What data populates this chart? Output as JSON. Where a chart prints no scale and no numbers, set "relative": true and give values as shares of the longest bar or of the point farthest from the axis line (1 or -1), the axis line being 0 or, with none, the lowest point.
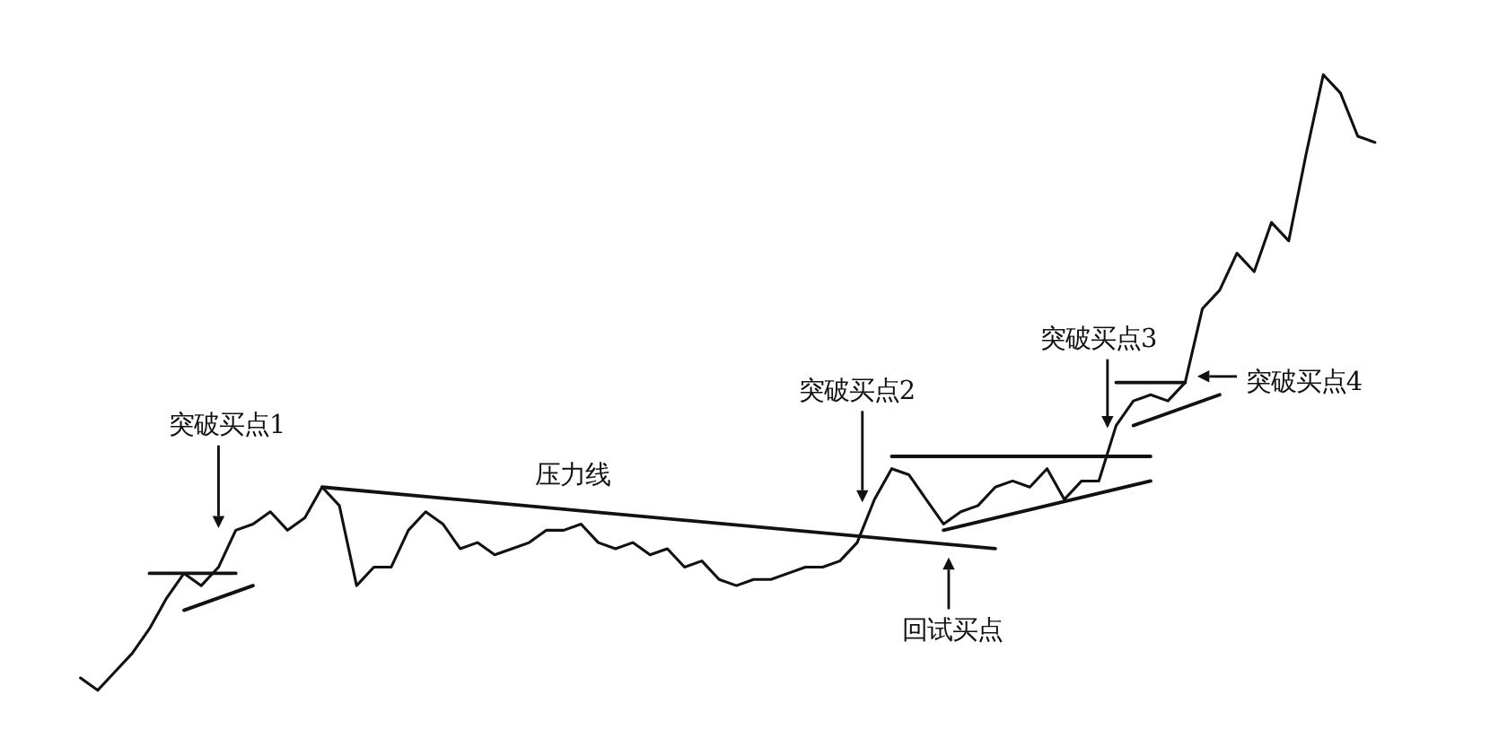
{
  "chart_data": {
    "type": "line",
    "relative": true,
    "marker": "none",
    "categories": [
      null,
      null,
      null,
      null,
      null,
      null,
      null,
      null,
      null,
      null,
      null,
      null,
      null,
      null,
      null,
      null,
      null,
      null,
      null,
      null,
      null,
      null,
      null,
      null,
      null,
      null,
      null,
      null,
      null,
      null,
      null,
      null,
      null,
      null,
      null,
      null,
      null,
      null,
      null,
      null,
      null,
      null,
      null,
      null,
      null,
      null,
      null,
      null,
      null,
      null,
      null,
      null,
      null,
      null,
      null,
      null,
      null,
      null,
      null,
      null,
      null,
      null,
      null,
      null,
      null,
      null,
      null,
      null,
      null,
      null,
      null,
      null,
      null,
      null,
      null,
      null
    ],
    "series": [
      {
        "color": "#111111",
        "values": [
          0.02,
          0,
          0.03,
          0.06,
          0.1,
          0.15,
          0.19,
          0.17,
          0.2,
          0.26,
          0.27,
          0.29,
          0.26,
          0.28,
          0.33,
          0.3,
          0.17,
          0.2,
          0.2,
          0.26,
          0.29,
          0.27,
          0.23,
          0.24,
          0.22,
          0.23,
          0.24,
          0.26,
          0.26,
          0.27,
          0.24,
          0.23,
          0.24,
          0.22,
          0.23,
          0.2,
          0.21,
          0.18,
          0.17,
          0.18,
          0.18,
          0.19,
          0.2,
          0.2,
          0.21,
          0.24,
          0.31,
          0.36,
          0.35,
          0.31,
          0.27,
          0.29,
          0.3,
          0.33,
          0.34,
          0.33,
          0.36,
          0.31,
          0.34,
          0.34,
          0.43,
          0.47,
          0.48,
          0.47,
          0.5,
          0.62,
          0.65,
          0.71,
          0.68,
          0.76,
          0.73,
          0.87,
          1,
          0.97,
          0.9,
          0.89
        ]
      },
      {
        "color": "#111111",
        "values": [
          null,
          null,
          null,
          null,
          0.19,
          null,
          null,
          null,
          null,
          0.19,
          null,
          null,
          null,
          null,
          null,
          null,
          null,
          null,
          null,
          null,
          null,
          null,
          null,
          null,
          null,
          null,
          null,
          null,
          null,
          null,
          null,
          null,
          null,
          null,
          null,
          null,
          null,
          null,
          null,
          null,
          null,
          null,
          null,
          null,
          null,
          null,
          null,
          null,
          null,
          null,
          null,
          null,
          null,
          null,
          null,
          null,
          null,
          null,
          null,
          null,
          null,
          null,
          null,
          null,
          null,
          null,
          null,
          null,
          null,
          null,
          null,
          null,
          null,
          null,
          null,
          null
        ]
      },
      {
        "color": "#111111",
        "values": [
          null,
          null,
          null,
          null,
          null,
          null,
          0.13,
          null,
          null,
          null,
          0.17,
          null,
          null,
          null,
          null,
          null,
          null,
          null,
          null,
          null,
          null,
          null,
          null,
          null,
          null,
          null,
          null,
          null,
          null,
          null,
          null,
          null,
          null,
          null,
          null,
          null,
          null,
          null,
          null,
          null,
          null,
          null,
          null,
          null,
          null,
          null,
          null,
          null,
          null,
          null,
          null,
          null,
          null,
          null,
          null,
          null,
          null,
          null,
          null,
          null,
          null,
          null,
          null,
          null,
          null,
          null,
          null,
          null,
          null,
          null,
          null,
          null,
          null,
          null,
          null,
          null
        ]
      },
      {
        "color": "#111111",
        "values": [
          null,
          null,
          null,
          null,
          null,
          null,
          null,
          null,
          null,
          null,
          null,
          null,
          null,
          null,
          0.33,
          null,
          null,
          null,
          null,
          null,
          null,
          null,
          null,
          null,
          null,
          null,
          null,
          null,
          null,
          null,
          null,
          null,
          null,
          null,
          null,
          null,
          null,
          null,
          null,
          null,
          null,
          null,
          null,
          null,
          null,
          null,
          null,
          null,
          null,
          null,
          null,
          null,
          null,
          0.23,
          null,
          null,
          null,
          null,
          null,
          null,
          null,
          null,
          null,
          null,
          null,
          null,
          null,
          null,
          null,
          null,
          null,
          null,
          null,
          null,
          null,
          null
        ]
      },
      {
        "color": "#111111",
        "values": [
          null,
          null,
          null,
          null,
          null,
          null,
          null,
          null,
          null,
          null,
          null,
          null,
          null,
          null,
          null,
          null,
          null,
          null,
          null,
          null,
          null,
          null,
          null,
          null,
          null,
          null,
          null,
          null,
          null,
          null,
          null,
          null,
          null,
          null,
          null,
          null,
          null,
          null,
          null,
          null,
          null,
          null,
          null,
          null,
          null,
          null,
          null,
          0.38,
          null,
          null,
          null,
          null,
          null,
          null,
          null,
          null,
          null,
          null,
          null,
          null,
          null,
          null,
          0.38,
          null,
          null,
          null,
          null,
          null,
          null,
          null,
          null,
          null,
          null,
          null,
          null,
          null
        ]
      },
      {
        "color": "#111111",
        "values": [
          null,
          null,
          null,
          null,
          null,
          null,
          null,
          null,
          null,
          null,
          null,
          null,
          null,
          null,
          null,
          null,
          null,
          null,
          null,
          null,
          null,
          null,
          null,
          null,
          null,
          null,
          null,
          null,
          null,
          null,
          null,
          null,
          null,
          null,
          null,
          null,
          null,
          null,
          null,
          null,
          null,
          null,
          null,
          null,
          null,
          null,
          null,
          null,
          null,
          null,
          0.26,
          null,
          null,
          null,
          null,
          null,
          null,
          null,
          null,
          null,
          null,
          null,
          0.34,
          null,
          null,
          null,
          null,
          null,
          null,
          null,
          null,
          null,
          null,
          null,
          null,
          null
        ]
      },
      {
        "color": "#111111",
        "values": [
          null,
          null,
          null,
          null,
          null,
          null,
          null,
          null,
          null,
          null,
          null,
          null,
          null,
          null,
          null,
          null,
          null,
          null,
          null,
          null,
          null,
          null,
          null,
          null,
          null,
          null,
          null,
          null,
          null,
          null,
          null,
          null,
          null,
          null,
          null,
          null,
          null,
          null,
          null,
          null,
          null,
          null,
          null,
          null,
          null,
          null,
          null,
          null,
          null,
          null,
          null,
          null,
          null,
          null,
          null,
          null,
          null,
          null,
          null,
          null,
          0.5,
          null,
          null,
          null,
          0.5,
          null,
          null,
          null,
          null,
          null,
          null,
          null,
          null,
          null,
          null,
          null
        ]
      },
      {
        "color": "#111111",
        "values": [
          null,
          null,
          null,
          null,
          null,
          null,
          null,
          null,
          null,
          null,
          null,
          null,
          null,
          null,
          null,
          null,
          null,
          null,
          null,
          null,
          null,
          null,
          null,
          null,
          null,
          null,
          null,
          null,
          null,
          null,
          null,
          null,
          null,
          null,
          null,
          null,
          null,
          null,
          null,
          null,
          null,
          null,
          null,
          null,
          null,
          null,
          null,
          null,
          null,
          null,
          null,
          null,
          null,
          null,
          null,
          null,
          null,
          null,
          null,
          null,
          null,
          0.43,
          null,
          null,
          null,
          null,
          0.48,
          null,
          null,
          null,
          null,
          null,
          null,
          null,
          null,
          null
        ]
      }
    ],
    "annotations": [
      "突破买点1",
      "压力线",
      "突破买点2",
      "回试买点",
      "突破买点3",
      "突破买点4"
    ]
  }
}
